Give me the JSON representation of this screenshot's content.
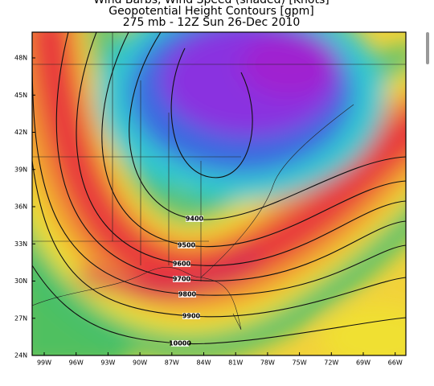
{
  "header": {
    "title_lines": [
      "Wind Barbs, Wind Speed (shaded) [Knots]",
      "Geopotential Height Contours [gpm]",
      "275 mb - 12Z Sun 26-Dec 2010"
    ]
  },
  "map": {
    "lat_labels": [
      "48N",
      "45N",
      "42N",
      "39N",
      "36N",
      "33N",
      "30N",
      "27N",
      "24N"
    ],
    "lon_labels": [
      "99W",
      "96W",
      "93W",
      "90W",
      "87W",
      "84W",
      "81W",
      "78W",
      "75W",
      "72W",
      "69W",
      "66W"
    ],
    "contour_labels": [
      "9400",
      "9500",
      "9600",
      "9700",
      "9800",
      "9900",
      "10000"
    ]
  }
}
